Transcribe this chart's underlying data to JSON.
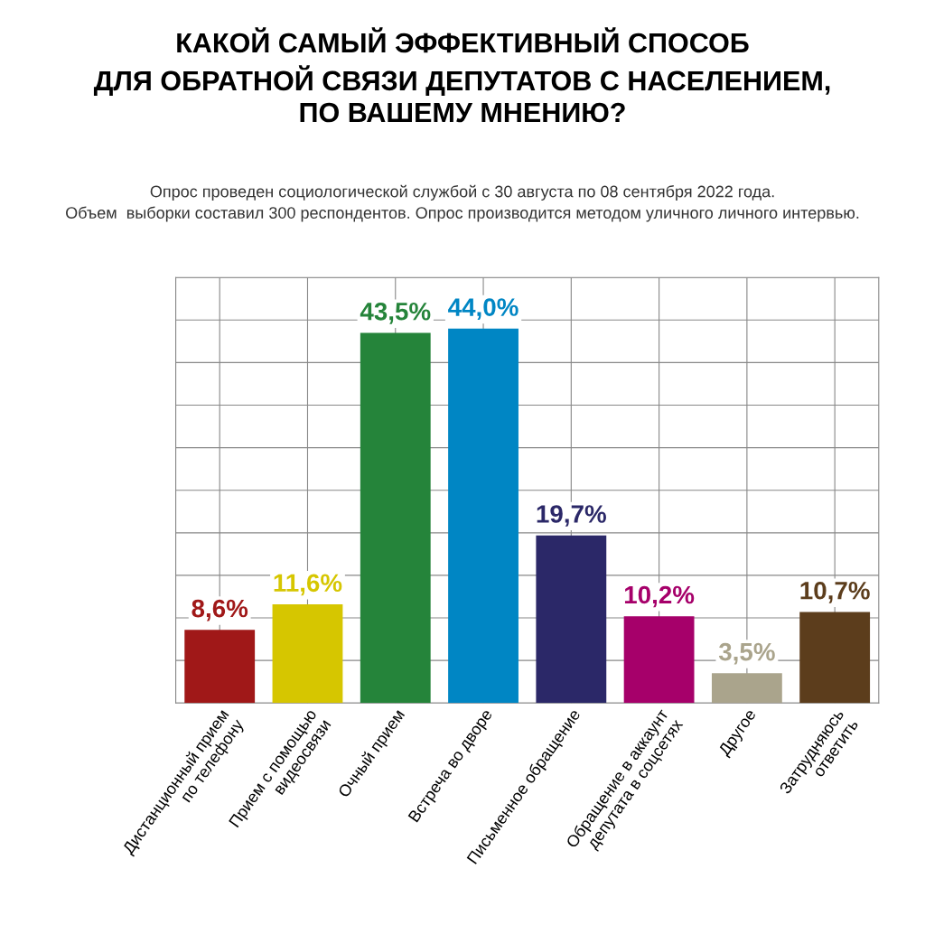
{
  "chart_data": {
    "type": "bar",
    "title": "КАКОЙ САМЫЙ ЭФФЕКТИВНЫЙ СПОСОБ\nДЛЯ ОБРАТНОЙ СВЯЗИ ДЕПУТАТОВ С НАСЕЛЕНИЕМ,\nПО ВАШЕМУ МНЕНИЮ?",
    "subtitle": "Опрос проведен социологической службой с 30 августа по 08 сентября 2022 года.\nОбъем  выборки составил 300 респондентов. Опрос производится методом уличного личного интервью.",
    "categories": [
      "Дистанционный прием\nпо телефону",
      "Прием с помощью\nвидеосвязи",
      "Очный прием",
      "Встреча во дворе",
      "Письменное обращение",
      "Обращение в аккаунт\nдепутата в соцсетях",
      "Другое",
      "Затрудняюсь\nответить"
    ],
    "values": [
      8.6,
      11.6,
      43.5,
      44.0,
      19.7,
      10.2,
      3.5,
      10.7
    ],
    "value_labels": [
      "8,6%",
      "11,6%",
      "43,5%",
      "44,0%",
      "19,7%",
      "10,2%",
      "3,5%",
      "10,7%"
    ],
    "colors": [
      "#a01818",
      "#d6c600",
      "#25843a",
      "#0086c4",
      "#2b2868",
      "#a6006a",
      "#aaa48c",
      "#5c3d1c"
    ],
    "ylim": [
      0,
      50
    ],
    "yticks": [
      {
        "value": 0,
        "label": null
      },
      {
        "value": 5,
        "label": null
      },
      {
        "value": 10,
        "label": null
      },
      {
        "value": 15,
        "label": null
      },
      {
        "value": 20,
        "label": null
      },
      {
        "value": 25,
        "label": null
      },
      {
        "value": 30,
        "label": null
      },
      {
        "value": 35,
        "label": null
      },
      {
        "value": 40,
        "label": null
      },
      {
        "value": 45,
        "label": null
      },
      {
        "value": 50,
        "label": null
      }
    ],
    "tick_labels": "x",
    "grid": true
  }
}
